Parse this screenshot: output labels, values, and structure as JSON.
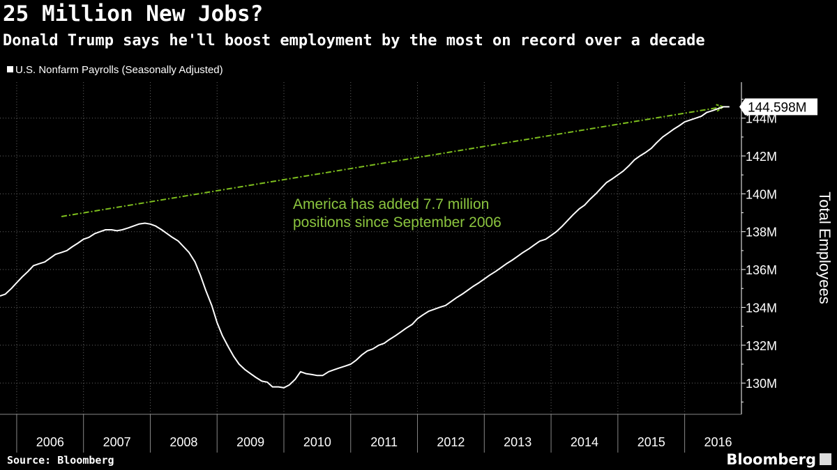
{
  "title": "25 Million New Jobs?",
  "subtitle": "Donald Trump says he'll boost employment by the most on record over a decade",
  "legend": "U.S. Nonfarm Payrolls (Seasonally Adjusted)",
  "source": "Source: Bloomberg",
  "brand": "Bloomberg",
  "chart_data": {
    "type": "line",
    "ylabel": "Total Employees",
    "yticks": [
      "130M",
      "132M",
      "134M",
      "136M",
      "138M",
      "140M",
      "142M",
      "144M"
    ],
    "ytick_values": [
      130,
      132,
      134,
      136,
      138,
      140,
      142,
      144
    ],
    "xticks": [
      "2006",
      "2007",
      "2008",
      "2009",
      "2010",
      "2011",
      "2012",
      "2013",
      "2014",
      "2015",
      "2016"
    ],
    "ylim": [
      128.35,
      145.9
    ],
    "xlim": [
      2005.75,
      2016.85
    ],
    "grid": true,
    "last_value_label": "144.598M",
    "annotation": "America has added 7.7 million\npositions since September 2006",
    "colors": {
      "series": "#ffffff",
      "trend": "#7ebf1e",
      "annotation": "#8cc63f",
      "grid": "#666666"
    },
    "trend_arrow": {
      "x": [
        2006.67,
        2016.58
      ],
      "y": [
        138.8,
        144.6
      ]
    },
    "series": [
      {
        "name": "U.S. Nonfarm Payrolls (Seasonally Adjusted)",
        "x": [
          2005.75,
          2005.83,
          2005.92,
          2006.0,
          2006.08,
          2006.17,
          2006.25,
          2006.33,
          2006.42,
          2006.5,
          2006.58,
          2006.67,
          2006.75,
          2006.83,
          2006.92,
          2007.0,
          2007.08,
          2007.17,
          2007.25,
          2007.33,
          2007.42,
          2007.5,
          2007.58,
          2007.67,
          2007.75,
          2007.83,
          2007.92,
          2008.0,
          2008.08,
          2008.17,
          2008.25,
          2008.33,
          2008.42,
          2008.5,
          2008.58,
          2008.67,
          2008.75,
          2008.83,
          2008.92,
          2009.0,
          2009.08,
          2009.17,
          2009.25,
          2009.33,
          2009.42,
          2009.5,
          2009.58,
          2009.67,
          2009.75,
          2009.83,
          2009.92,
          2010.0,
          2010.08,
          2010.17,
          2010.25,
          2010.33,
          2010.42,
          2010.5,
          2010.58,
          2010.67,
          2010.75,
          2010.83,
          2010.92,
          2011.0,
          2011.08,
          2011.17,
          2011.25,
          2011.33,
          2011.42,
          2011.5,
          2011.58,
          2011.67,
          2011.75,
          2011.83,
          2011.92,
          2012.0,
          2012.08,
          2012.17,
          2012.25,
          2012.33,
          2012.42,
          2012.5,
          2012.58,
          2012.67,
          2012.75,
          2012.83,
          2012.92,
          2013.0,
          2013.08,
          2013.17,
          2013.25,
          2013.33,
          2013.42,
          2013.5,
          2013.58,
          2013.67,
          2013.75,
          2013.83,
          2013.92,
          2014.0,
          2014.08,
          2014.17,
          2014.25,
          2014.33,
          2014.42,
          2014.5,
          2014.58,
          2014.67,
          2014.75,
          2014.83,
          2014.92,
          2015.0,
          2015.08,
          2015.17,
          2015.25,
          2015.33,
          2015.42,
          2015.5,
          2015.58,
          2015.67,
          2015.75,
          2015.83,
          2015.92,
          2016.0,
          2016.08,
          2016.17,
          2016.25,
          2016.33,
          2016.42,
          2016.5,
          2016.58,
          2016.67
        ],
        "values": [
          134.6,
          134.7,
          135.0,
          135.3,
          135.6,
          135.9,
          136.2,
          136.3,
          136.4,
          136.6,
          136.8,
          136.9,
          137.0,
          137.2,
          137.4,
          137.6,
          137.7,
          137.9,
          138.0,
          138.1,
          138.1,
          138.05,
          138.1,
          138.2,
          138.3,
          138.4,
          138.45,
          138.4,
          138.3,
          138.1,
          137.9,
          137.7,
          137.5,
          137.2,
          136.9,
          136.4,
          135.7,
          134.9,
          134.1,
          133.2,
          132.5,
          131.9,
          131.4,
          131.0,
          130.7,
          130.5,
          130.3,
          130.1,
          130.05,
          129.8,
          129.8,
          129.75,
          129.9,
          130.2,
          130.6,
          130.5,
          130.45,
          130.4,
          130.4,
          130.6,
          130.7,
          130.8,
          130.9,
          131.0,
          131.2,
          131.5,
          131.7,
          131.8,
          132.0,
          132.1,
          132.3,
          132.5,
          132.7,
          132.9,
          133.1,
          133.4,
          133.6,
          133.8,
          133.9,
          134.0,
          134.1,
          134.3,
          134.5,
          134.7,
          134.9,
          135.1,
          135.3,
          135.5,
          135.7,
          135.9,
          136.1,
          136.3,
          136.5,
          136.7,
          136.9,
          137.1,
          137.3,
          137.5,
          137.6,
          137.8,
          138.0,
          138.3,
          138.6,
          138.9,
          139.2,
          139.4,
          139.7,
          140.0,
          140.3,
          140.6,
          140.8,
          141.0,
          141.2,
          141.5,
          141.8,
          142.0,
          142.2,
          142.4,
          142.7,
          143.0,
          143.2,
          143.4,
          143.6,
          143.8,
          143.9,
          144.0,
          144.1,
          144.3,
          144.4,
          144.5,
          144.598,
          144.598
        ]
      }
    ]
  }
}
